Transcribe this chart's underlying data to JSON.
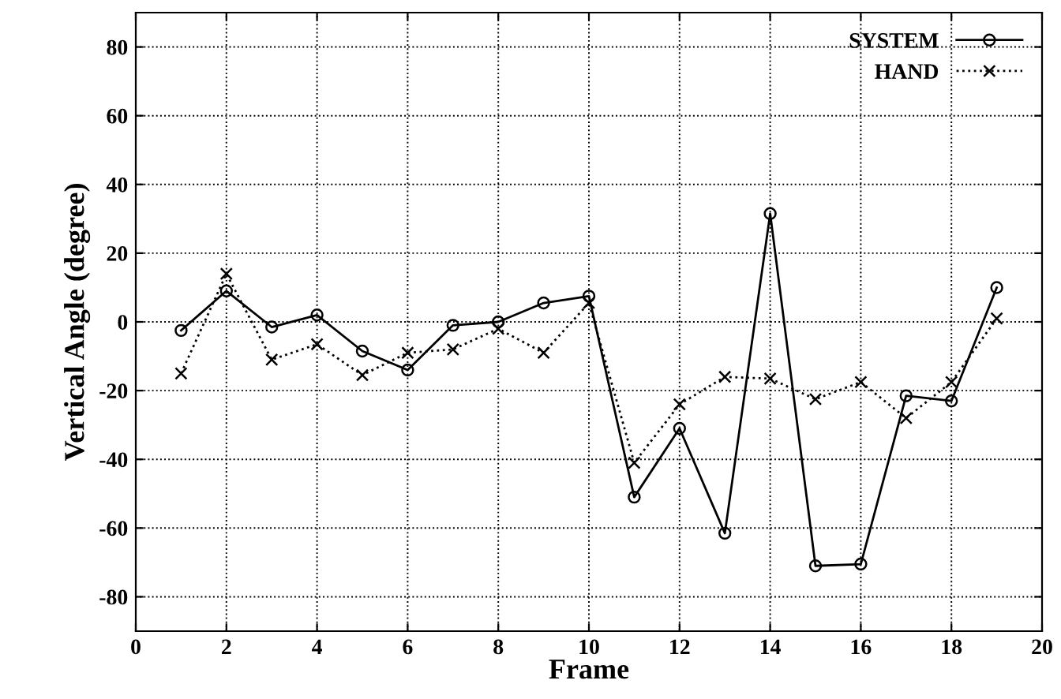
{
  "chart_data": {
    "type": "line",
    "xlabel": "Frame",
    "ylabel": "Vertical Angle (degree)",
    "x": [
      1,
      2,
      3,
      4,
      5,
      6,
      7,
      8,
      9,
      10,
      11,
      12,
      13,
      14,
      15,
      16,
      17,
      18,
      19
    ],
    "series": [
      {
        "name": "SYSTEM",
        "color": "#000000",
        "marker": "circle",
        "line_style": "solid",
        "values": [
          -2.5,
          9,
          -1.5,
          2,
          -8.5,
          -14,
          -1,
          0,
          5.5,
          7.5,
          -51,
          -31,
          -61.5,
          31.5,
          -71,
          -70.5,
          -21.5,
          -23,
          10
        ]
      },
      {
        "name": "HAND",
        "color": "#000000",
        "marker": "cross",
        "line_style": "dotted",
        "values": [
          -15,
          14,
          -11,
          -6.5,
          -15.5,
          -9,
          -8,
          -2,
          -9,
          5.5,
          -41,
          -24,
          -16,
          -16.5,
          -22.5,
          -17.5,
          -28,
          -17.5,
          1
        ]
      }
    ],
    "xlim": [
      0,
      20
    ],
    "xticks": [
      0,
      2,
      4,
      6,
      8,
      10,
      12,
      14,
      16,
      18,
      20
    ],
    "ylim": [
      -90,
      90
    ],
    "yticks": [
      -80,
      -60,
      -40,
      -20,
      0,
      20,
      40,
      60,
      80
    ],
    "grid": true,
    "legend": "top right"
  }
}
